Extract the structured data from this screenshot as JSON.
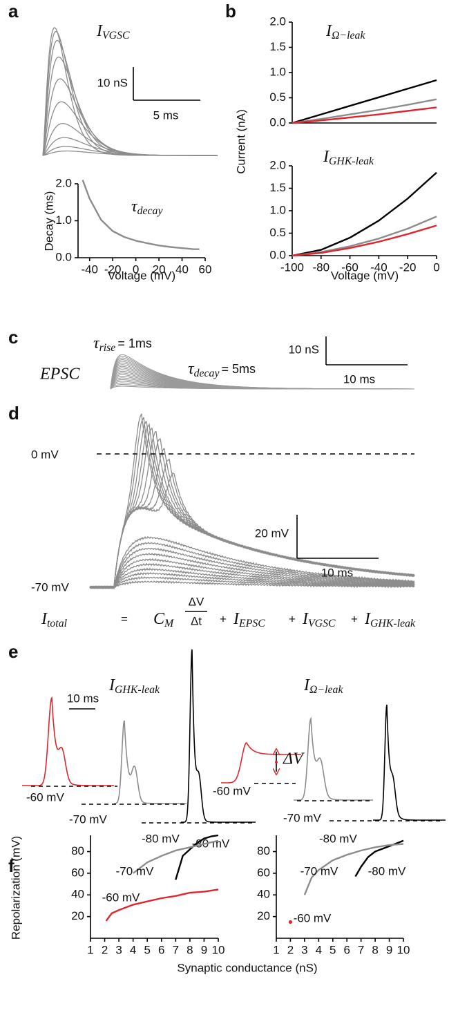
{
  "chart_data": [
    {
      "type": "trace",
      "panel": "a",
      "title": {
        "main": "I",
        "sub": "VGSC"
      },
      "scale_bar": {
        "y": "10 nS",
        "x": "5 ms"
      }
    },
    {
      "type": "line",
      "title": {
        "main": "τ",
        "sub": "decay"
      },
      "x_label": "Voltage (mV)",
      "y_label": "Decay (ms)",
      "x": [
        -46,
        -40,
        -30,
        -20,
        -10,
        0,
        10,
        20,
        30,
        40,
        50,
        55
      ],
      "series": [
        {
          "color": "#8c8c8c",
          "values": [
            2.1,
            1.6,
            1.02,
            0.72,
            0.56,
            0.46,
            0.39,
            0.33,
            0.29,
            0.26,
            0.23,
            0.23
          ]
        }
      ],
      "xlim": [
        -50,
        60
      ],
      "ylim": [
        0,
        2
      ],
      "xticks": [
        -40,
        -20,
        0,
        20,
        40,
        60
      ],
      "yticks": [
        {
          "value": 0,
          "label": "0.0"
        },
        {
          "value": 1,
          "label": "1.0"
        },
        {
          "value": 2,
          "label": "2.0"
        }
      ]
    },
    {
      "type": "line",
      "panel": "b",
      "title": {
        "main": "I",
        "sub": "Ω−leak"
      },
      "x": [
        -100,
        -80,
        -60,
        -40,
        -20,
        0
      ],
      "series": [
        {
          "color": "#000000",
          "values": [
            0,
            0.17,
            0.34,
            0.51,
            0.68,
            0.85
          ]
        },
        {
          "color": "#8c8c8c",
          "values": [
            0,
            0.08,
            0.17,
            0.26,
            0.36,
            0.47
          ]
        },
        {
          "color": "#e0262d",
          "values": [
            0,
            0.05,
            0.11,
            0.17,
            0.24,
            0.31
          ]
        }
      ],
      "xlim": [
        -100,
        0
      ],
      "ylim": [
        0,
        2
      ],
      "yticks": [
        {
          "value": 0,
          "label": "0.0"
        },
        0.5,
        {
          "value": 1,
          "label": "1.0"
        },
        1.5,
        {
          "value": 2,
          "label": "2.0"
        }
      ]
    },
    {
      "type": "line",
      "title": {
        "main": "I",
        "sub": "GHK-leak"
      },
      "x_label": "Voltage (mV)",
      "y_label": "Current (nA)",
      "x": [
        -100,
        -80,
        -60,
        -40,
        -20,
        0
      ],
      "series": [
        {
          "color": "#000000",
          "values": [
            0,
            0.13,
            0.4,
            0.78,
            1.27,
            1.85
          ]
        },
        {
          "color": "#8c8c8c",
          "values": [
            0,
            0.08,
            0.21,
            0.38,
            0.6,
            0.87
          ]
        },
        {
          "color": "#e0262d",
          "values": [
            0,
            0.06,
            0.17,
            0.31,
            0.48,
            0.67
          ]
        }
      ],
      "xlim": [
        -100,
        0
      ],
      "ylim": [
        0,
        2
      ],
      "xticks": [
        -100,
        -80,
        -60,
        -40,
        -20,
        0
      ],
      "yticks": [
        {
          "value": 0,
          "label": "0.0"
        },
        0.5,
        {
          "value": 1,
          "label": "1.0"
        },
        1.5,
        {
          "value": 2,
          "label": "2.0"
        }
      ]
    },
    {
      "type": "trace",
      "panel": "c",
      "label": "EPSC",
      "rise": {
        "main": "τ",
        "sub": "rise",
        "rest": "= 1ms"
      },
      "decay": {
        "main": "τ",
        "sub": "decay",
        "rest": "= 5ms"
      },
      "scale_bar": {
        "y": "10 nS",
        "x": "10 ms"
      }
    },
    {
      "type": "trace",
      "panel": "d",
      "levels": [
        "0 mV",
        "-70 mV"
      ],
      "scale_bar": {
        "y": "20 mV",
        "x": "10 ms"
      },
      "equation": {
        "lhs": {
          "main": "I",
          "sub": "total"
        },
        "eq": "=",
        "cm": {
          "main": "C",
          "sub": "M"
        },
        "num": "ΔV",
        "den": "Δt",
        "plus": "+",
        "terms": [
          {
            "main": "I",
            "sub": "EPSC"
          },
          {
            "main": "I",
            "sub": "VGSC"
          },
          {
            "main": "I",
            "sub": "GHK-leak"
          }
        ]
      }
    },
    {
      "type": "trace",
      "panel": "e",
      "titles": [
        {
          "main": "I",
          "sub": "GHK-leak"
        },
        {
          "main": "I",
          "sub": "Ω−leak"
        }
      ],
      "levels": [
        "-60 mV",
        "-70 mV",
        "-80 mV"
      ],
      "delta": "ΔV",
      "scale_bar": {
        "x": "10 ms"
      }
    },
    {
      "type": "line",
      "panel": "f",
      "x_label": "Synaptic conductance (nS)",
      "y_label": "Repolarization (mV)",
      "series": [
        {
          "name": "-80 mV",
          "color": "#000000",
          "x": [
            7,
            7.5,
            8,
            8.5,
            9,
            9.5,
            10
          ],
          "values": [
            54,
            76,
            82,
            88,
            92,
            94,
            95
          ]
        },
        {
          "name": "-70 mV",
          "color": "#8c8c8c",
          "x": [
            4,
            5,
            6,
            7,
            8,
            9,
            10
          ],
          "values": [
            60,
            70,
            76,
            81,
            84,
            87,
            90
          ]
        },
        {
          "name": "-60 mV",
          "color": "#e0262d",
          "x": [
            2.1,
            2.5,
            3,
            4,
            5,
            6,
            7,
            8,
            9,
            10
          ],
          "values": [
            16,
            23,
            26,
            31,
            34,
            37,
            39,
            42,
            43,
            45
          ]
        }
      ],
      "xlim": [
        1,
        10
      ],
      "ylim": [
        0,
        95
      ],
      "xticks": [
        1,
        2,
        3,
        4,
        5,
        6,
        7,
        8,
        9,
        10
      ],
      "yticks": [
        20,
        40,
        60,
        80
      ]
    },
    {
      "type": "line",
      "series": [
        {
          "name": "-80 mV",
          "color": "#000000",
          "x": [
            6.6,
            7,
            7.5,
            8,
            9,
            10
          ],
          "values": [
            57,
            66,
            75,
            80,
            85,
            90
          ]
        },
        {
          "name": "-70 mV",
          "color": "#8c8c8c",
          "x": [
            3,
            3.5,
            4,
            5,
            6,
            7,
            8,
            9,
            10
          ],
          "values": [
            40,
            56,
            63,
            72,
            77,
            81,
            84,
            86,
            87
          ]
        },
        {
          "name": "-60 mV",
          "color": "#e0262d",
          "x": [
            2
          ],
          "values": [
            15
          ]
        }
      ],
      "xlim": [
        1,
        10
      ],
      "ylim": [
        0,
        95
      ],
      "xticks": [
        1,
        2,
        3,
        4,
        5,
        6,
        7,
        8,
        9,
        10
      ],
      "yticks": [
        20,
        40,
        60,
        80
      ]
    }
  ]
}
